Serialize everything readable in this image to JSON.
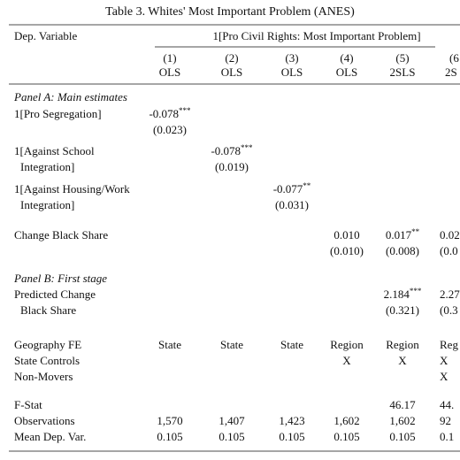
{
  "title": "Table 3. Whites' Most Important Problem (ANES)",
  "header": {
    "dep_variable": "Dep. Variable",
    "spanning": "1[Pro Civil Rights: Most Important Problem]",
    "columns": [
      {
        "number": "(1)",
        "method": "OLS"
      },
      {
        "number": "(2)",
        "method": "OLS"
      },
      {
        "number": "(3)",
        "method": "OLS"
      },
      {
        "number": "(4)",
        "method": "OLS"
      },
      {
        "number": "(5)",
        "method": "2SLS"
      },
      {
        "number": "(6",
        "method": "2S"
      }
    ]
  },
  "panels": [
    {
      "title": "Panel A: Main estimates",
      "rows": [
        {
          "label": [
            "1[Pro Segregation]"
          ],
          "cells": [
            {
              "estimate": "-0.078",
              "stars": "***",
              "se": "(0.023)"
            },
            null,
            null,
            null,
            null,
            null
          ]
        },
        {
          "label": [
            "1[Against School",
            "Integration]"
          ],
          "cells": [
            null,
            {
              "estimate": "-0.078",
              "stars": "***",
              "se": "(0.019)"
            },
            null,
            null,
            null,
            null
          ]
        },
        {
          "label": [
            "1[Against Housing/Work",
            "Integration]"
          ],
          "cells": [
            null,
            null,
            {
              "estimate": "-0.077",
              "stars": "**",
              "se": "(0.031)"
            },
            null,
            null,
            null
          ]
        },
        {
          "label": [
            "Change Black Share"
          ],
          "cells": [
            null,
            null,
            null,
            {
              "estimate": "0.010",
              "se": "(0.010)"
            },
            {
              "estimate": "0.017",
              "stars": "**",
              "se": "(0.008)"
            },
            {
              "estimate": "0.02",
              "se": "(0.0"
            }
          ]
        }
      ]
    },
    {
      "title": "Panel B: First stage",
      "rows": [
        {
          "label": [
            "Predicted Change",
            "Black Share"
          ],
          "cells": [
            null,
            null,
            null,
            null,
            {
              "estimate": "2.184",
              "stars": "***",
              "se": "(0.321)"
            },
            {
              "estimate": "2.27",
              "se": "(0.3"
            }
          ]
        }
      ]
    }
  ],
  "controls": [
    {
      "label": "Geography FE",
      "cells": [
        "State",
        "State",
        "State",
        "Region",
        "Region",
        "Reg"
      ]
    },
    {
      "label": "State Controls",
      "cells": [
        null,
        null,
        null,
        "X",
        "X",
        "X"
      ]
    },
    {
      "label": "Non-Movers",
      "cells": [
        null,
        null,
        null,
        null,
        null,
        "X"
      ]
    }
  ],
  "stats": [
    {
      "label": "F-Stat",
      "cells": [
        null,
        null,
        null,
        null,
        "46.17",
        "44."
      ]
    },
    {
      "label": "Observations",
      "cells": [
        "1,570",
        "1,407",
        "1,423",
        "1,602",
        "1,602",
        "92"
      ]
    },
    {
      "label": "Mean Dep. Var.",
      "cells": [
        "0.105",
        "0.105",
        "0.105",
        "0.105",
        "0.105",
        "0.1"
      ]
    }
  ]
}
